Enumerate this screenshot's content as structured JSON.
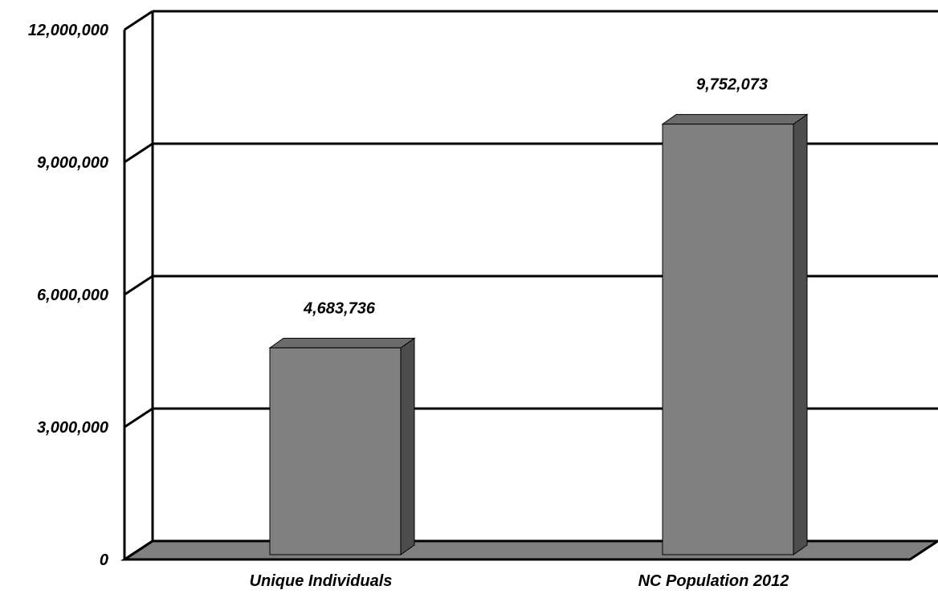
{
  "chart_data": {
    "type": "bar",
    "categories": [
      "Unique Individuals",
      "NC Population 2012"
    ],
    "values": [
      4683736,
      9752073
    ],
    "data_labels": [
      "4,683,736",
      "9,752,073"
    ],
    "ylim": [
      0,
      12000000
    ],
    "yticks": [
      0,
      3000000,
      6000000,
      9000000,
      12000000
    ],
    "ytick_labels": [
      "0",
      "3,000,000",
      "6,000,000",
      "9,000,000",
      "12,000,000"
    ],
    "grid": true,
    "three_d": true,
    "legend": "none",
    "title": "",
    "xlabel": "",
    "ylabel": ""
  },
  "colors": {
    "bar_front": "#808080",
    "bar_top": "#6b6b6b",
    "bar_side": "#4d4d4d",
    "floor": "#808080",
    "grid": "#000000",
    "background": "#ffffff"
  }
}
